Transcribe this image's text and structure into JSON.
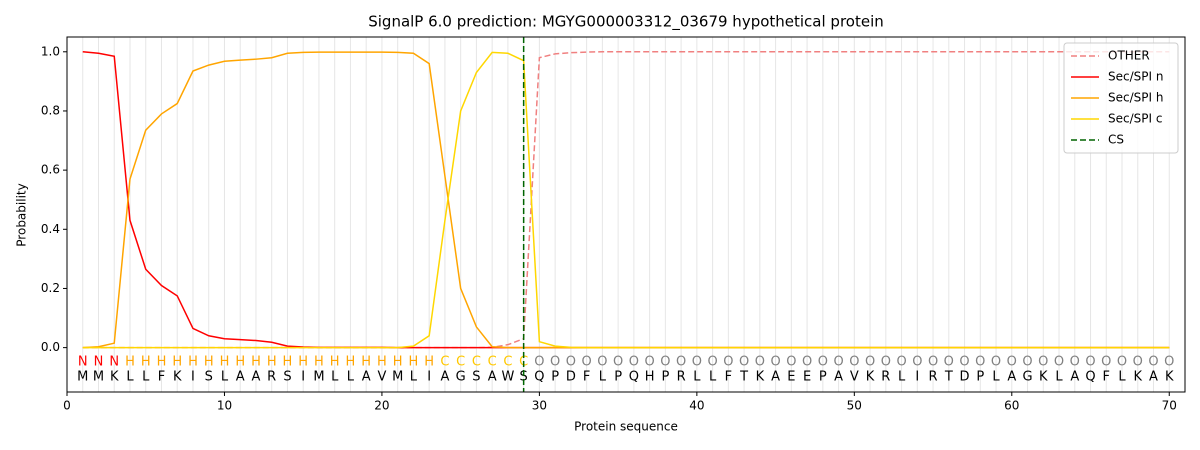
{
  "chart_data": {
    "type": "line",
    "title": "SignalP 6.0 prediction: MGYG000003312_03679 hypothetical protein",
    "x_label": "Protein sequence",
    "y_label": "Probability",
    "x": [
      1,
      2,
      3,
      4,
      5,
      6,
      7,
      8,
      9,
      10,
      11,
      12,
      13,
      14,
      15,
      16,
      17,
      18,
      19,
      20,
      21,
      22,
      23,
      24,
      25,
      26,
      27,
      28,
      29,
      30,
      31,
      32,
      33,
      34,
      35,
      36,
      37,
      38,
      39,
      40,
      41,
      42,
      43,
      44,
      45,
      46,
      47,
      48,
      49,
      50,
      51,
      52,
      53,
      54,
      55,
      56,
      57,
      58,
      59,
      60,
      61,
      62,
      63,
      64,
      65,
      66,
      67,
      68,
      69,
      70
    ],
    "residues": [
      "M",
      "M",
      "K",
      "L",
      "L",
      "F",
      "K",
      "I",
      "S",
      "L",
      "A",
      "A",
      "R",
      "S",
      "I",
      "M",
      "L",
      "L",
      "A",
      "V",
      "M",
      "L",
      "I",
      "A",
      "G",
      "S",
      "A",
      "W",
      "S",
      "Q",
      "P",
      "D",
      "F",
      "L",
      "P",
      "Q",
      "H",
      "P",
      "R",
      "L",
      "L",
      "F",
      "T",
      "K",
      "A",
      "E",
      "E",
      "P",
      "A",
      "V",
      "K",
      "R",
      "L",
      "I",
      "R",
      "T",
      "D",
      "P",
      "L",
      "A",
      "G",
      "K",
      "L",
      "A",
      "Q",
      "F",
      "L",
      "K",
      "A",
      "K"
    ],
    "regions": [
      "N",
      "N",
      "N",
      "H",
      "H",
      "H",
      "H",
      "H",
      "H",
      "H",
      "H",
      "H",
      "H",
      "H",
      "H",
      "H",
      "H",
      "H",
      "H",
      "H",
      "H",
      "H",
      "H",
      "C",
      "C",
      "C",
      "C",
      "C",
      "C",
      "O",
      "O",
      "O",
      "O",
      "O",
      "O",
      "O",
      "O",
      "O",
      "O",
      "O",
      "O",
      "O",
      "O",
      "O",
      "O",
      "O",
      "O",
      "O",
      "O",
      "O",
      "O",
      "O",
      "O",
      "O",
      "O",
      "O",
      "O",
      "O",
      "O",
      "O",
      "O",
      "O",
      "O",
      "O",
      "O",
      "O",
      "O",
      "O",
      "O",
      "O"
    ],
    "region_colors": {
      "N": "#ff0000",
      "H": "#ffa500",
      "C": "#ffc800",
      "O": "#808080"
    },
    "series": [
      {
        "name": "OTHER",
        "color": "#f08080",
        "dashed": true,
        "values": [
          0,
          0,
          0,
          0,
          0,
          0,
          0,
          0,
          0,
          0,
          0,
          0,
          0,
          0,
          0,
          0,
          0,
          0,
          0,
          0,
          0,
          0,
          0,
          0,
          0,
          0,
          0.001,
          0.01,
          0.03,
          0.98,
          0.993,
          0.997,
          0.999,
          1.0,
          1.0,
          1.0,
          1.0,
          1.0,
          1.0,
          1.0,
          1.0,
          1.0,
          1.0,
          1.0,
          1.0,
          1.0,
          1.0,
          1.0,
          1.0,
          1.0,
          1.0,
          1.0,
          1.0,
          1.0,
          1.0,
          1.0,
          1.0,
          1.0,
          1.0,
          1.0,
          1.0,
          1.0,
          1.0,
          1.0,
          1.0,
          1.0,
          1.0,
          1.0,
          1.0,
          1.0
        ]
      },
      {
        "name": "Sec/SPI n",
        "color": "#ff0000",
        "dashed": false,
        "values": [
          1.0,
          0.995,
          0.985,
          0.43,
          0.265,
          0.21,
          0.175,
          0.065,
          0.04,
          0.03,
          0.027,
          0.024,
          0.018,
          0.005,
          0.002,
          0.001,
          0.001,
          0.001,
          0.001,
          0.001,
          0,
          0,
          0,
          0,
          0,
          0,
          0,
          0,
          0,
          0,
          0,
          0,
          0,
          0,
          0,
          0,
          0,
          0,
          0,
          0,
          0,
          0,
          0,
          0,
          0,
          0,
          0,
          0,
          0,
          0,
          0,
          0,
          0,
          0,
          0,
          0,
          0,
          0,
          0,
          0,
          0,
          0,
          0,
          0,
          0,
          0,
          0,
          0,
          0,
          0
        ]
      },
      {
        "name": "Sec/SPI h",
        "color": "#ffa500",
        "dashed": false,
        "values": [
          0,
          0.003,
          0.015,
          0.57,
          0.735,
          0.79,
          0.825,
          0.935,
          0.955,
          0.968,
          0.972,
          0.975,
          0.98,
          0.995,
          0.998,
          0.999,
          0.999,
          0.999,
          0.999,
          0.999,
          0.998,
          0.995,
          0.96,
          0.58,
          0.2,
          0.07,
          0.003,
          0,
          0,
          0,
          0,
          0,
          0,
          0,
          0,
          0,
          0,
          0,
          0,
          0,
          0,
          0,
          0,
          0,
          0,
          0,
          0,
          0,
          0,
          0,
          0,
          0,
          0,
          0,
          0,
          0,
          0,
          0,
          0,
          0,
          0,
          0,
          0,
          0,
          0,
          0,
          0,
          0,
          0,
          0
        ]
      },
      {
        "name": "Sec/SPI c",
        "color": "#ffd700",
        "dashed": false,
        "values": [
          0,
          0,
          0,
          0,
          0,
          0,
          0,
          0,
          0,
          0,
          0,
          0,
          0,
          0,
          0,
          0,
          0,
          0,
          0,
          0,
          0,
          0.005,
          0.04,
          0.43,
          0.8,
          0.93,
          0.998,
          0.995,
          0.97,
          0.02,
          0.005,
          0.001,
          0,
          0,
          0,
          0,
          0,
          0,
          0,
          0,
          0,
          0,
          0,
          0,
          0,
          0,
          0,
          0,
          0,
          0,
          0,
          0,
          0,
          0,
          0,
          0,
          0,
          0,
          0,
          0,
          0,
          0,
          0,
          0,
          0,
          0,
          0,
          0,
          0,
          0
        ]
      }
    ],
    "cs": {
      "name": "CS",
      "position": 29,
      "color": "#006400"
    },
    "xlim": [
      0,
      71
    ],
    "ylim": [
      -0.15,
      1.05
    ],
    "xticks": [
      0,
      10,
      20,
      30,
      40,
      50,
      60,
      70
    ],
    "yticks": [
      {
        "value": 0,
        "label": "0.0"
      },
      0.2,
      0.4,
      0.6,
      0.8,
      {
        "value": 1,
        "label": "1.0"
      }
    ],
    "legend": "upper right"
  }
}
